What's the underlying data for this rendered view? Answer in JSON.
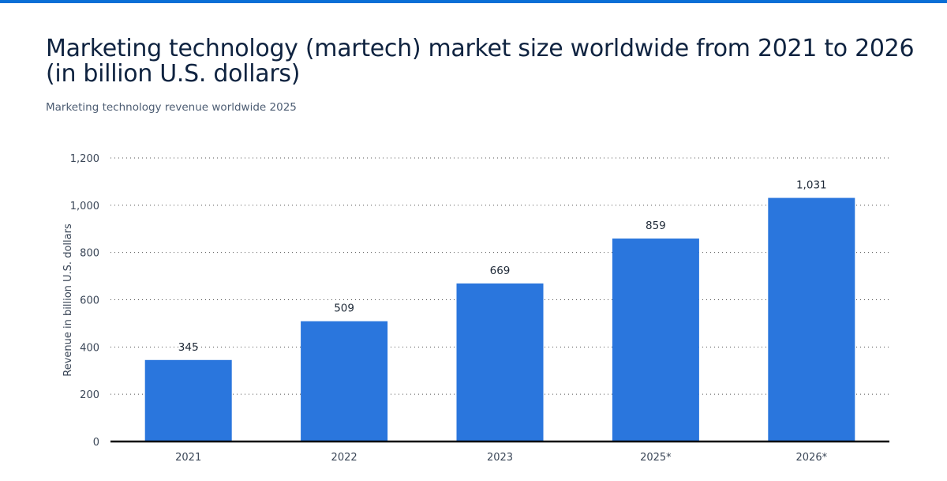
{
  "colors": {
    "accent": "#0a6fd6",
    "bar": "#2a76dd",
    "title": "#0f2340"
  },
  "chart_data": {
    "type": "bar",
    "title": "Marketing technology (martech) market size worldwide from 2021 to 2026 (in billion U.S. dollars)",
    "subtitle": "Marketing technology revenue worldwide 2025",
    "xlabel": "",
    "ylabel": "Revenue in billion U.S. dollars",
    "categories": [
      "2021",
      "2022",
      "2023",
      "2025*",
      "2026*"
    ],
    "values": [
      345,
      509,
      669,
      859,
      1031
    ],
    "value_labels": [
      "345",
      "509",
      "669",
      "859",
      "1,031"
    ],
    "ylim": [
      0,
      1200
    ],
    "yticks": [
      0,
      200,
      400,
      600,
      800,
      1000,
      1200
    ],
    "ytick_labels": [
      "0",
      "200",
      "400",
      "600",
      "800",
      "1,000",
      "1,200"
    ],
    "grid": true,
    "legend": "none"
  }
}
